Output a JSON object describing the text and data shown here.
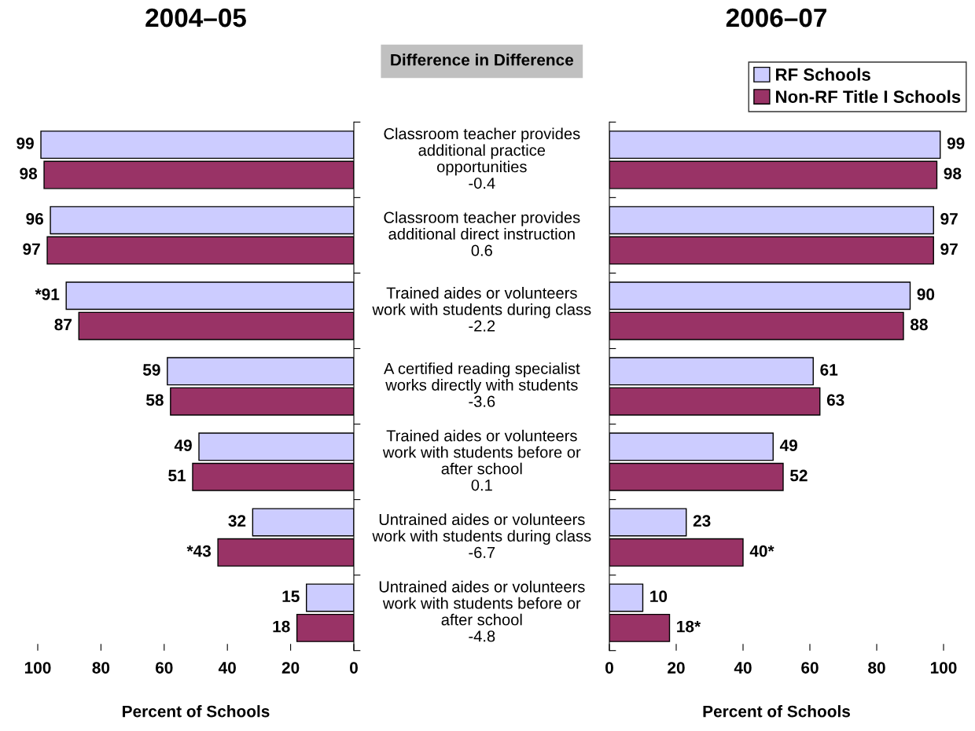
{
  "chart_data": [
    {
      "type": "bar",
      "orientation": "horizontal",
      "title": "2004–05",
      "xlabel": "Percent of Schools",
      "subtitle": "Difference in Difference",
      "categories": [
        "Classroom teacher provides\nadditional practice\nopportunities\n-0.4",
        "Classroom teacher provides\nadditional direct instruction\n0.6",
        "Trained aides or volunteers\nwork with students during class\n-2.2",
        "A certified reading specialist\nworks directly with students\n-3.6",
        "Trained aides or volunteers\nwork with students before or\nafter school\n0.1",
        "Untrained aides or volunteers\nwork with students during class\n-6.7",
        "Untrained aides or volunteers\nwork with students before or\nafter school\n-4.8"
      ],
      "series": [
        {
          "color": "#ccccff",
          "values": [
            99,
            96,
            91,
            59,
            49,
            32,
            15
          ],
          "value_labels": [
            "99",
            "96",
            "*91",
            "59",
            "49",
            "32",
            "15"
          ]
        },
        {
          "color": "#993366",
          "values": [
            98,
            97,
            87,
            58,
            51,
            43,
            18
          ],
          "value_labels": [
            "98",
            "97",
            "87",
            "58",
            "51",
            "*43",
            "18"
          ]
        }
      ],
      "xlim": [
        100,
        0
      ],
      "xticks": [
        100,
        80,
        60,
        40,
        20,
        0
      ],
      "grid": false,
      "legend": false
    },
    {
      "type": "bar",
      "orientation": "horizontal",
      "title": "2006–07",
      "xlabel": "Percent of Schools",
      "categories": [
        null,
        null,
        null,
        null,
        null,
        null,
        null
      ],
      "series": [
        {
          "name": "RF Schools",
          "color": "#ccccff",
          "values": [
            99,
            97,
            90,
            61,
            49,
            23,
            10
          ],
          "value_labels": [
            "99",
            "97",
            "90",
            "61",
            "49",
            "23",
            "10"
          ]
        },
        {
          "name": "Non-RF Title I Schools",
          "color": "#993366",
          "values": [
            98,
            97,
            88,
            63,
            52,
            40,
            18
          ],
          "value_labels": [
            "98",
            "97",
            "88",
            "63",
            "52",
            "40*",
            "18*"
          ]
        }
      ],
      "xlim": [
        0,
        100
      ],
      "xticks": [
        0,
        20,
        40,
        60,
        80,
        100
      ],
      "grid": false,
      "legend": "top right"
    }
  ]
}
